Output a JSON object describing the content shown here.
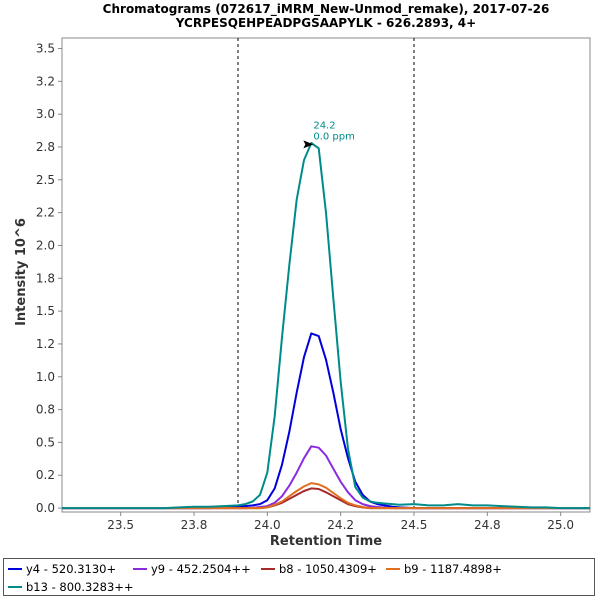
{
  "chart_data": {
    "type": "line",
    "title": "Chromatograms (072617_iMRM_New-Unmod_remake), 2017-07-26",
    "subtitle": "YCRPESQEHPEADPGSAAPYLK - 626.2893, 4+",
    "xlabel": "Retention Time",
    "ylabel": "Intensity 10^6",
    "xlim": [
      23.3,
      25.1
    ],
    "ylim": [
      -0.03,
      3.58
    ],
    "x_ticks": [
      "23.5",
      "23.8",
      "24.0",
      "24.2",
      "24.5",
      "24.8",
      "25.0"
    ],
    "x_tick_values": [
      23.5,
      23.75,
      24.0,
      24.25,
      24.5,
      24.75,
      25.0
    ],
    "y_ticks": [
      "0.0",
      "0.2",
      "0.5",
      "0.8",
      "1.0",
      "1.2",
      "1.5",
      "1.8",
      "2.0",
      "2.2",
      "2.5",
      "2.8",
      "3.0",
      "3.2",
      "3.5"
    ],
    "y_tick_values": [
      0,
      0.25,
      0.5,
      0.75,
      1.0,
      1.25,
      1.5,
      1.75,
      2.0,
      2.25,
      2.5,
      2.75,
      3.0,
      3.25,
      3.5
    ],
    "integration_bounds": [
      23.9,
      24.5
    ],
    "annotation": {
      "rt_label": "24.2",
      "ppm_label": "0.0 ppm",
      "x": 24.15,
      "y": 2.77,
      "color": "#008b8b"
    },
    "grid": false,
    "legend_position": "bottom",
    "x": [
      23.3,
      23.35,
      23.4,
      23.45,
      23.5,
      23.55,
      23.6,
      23.65,
      23.7,
      23.75,
      23.8,
      23.85,
      23.9,
      23.925,
      23.95,
      23.975,
      24.0,
      24.025,
      24.05,
      24.075,
      24.1,
      24.125,
      24.15,
      24.175,
      24.2,
      24.225,
      24.25,
      24.275,
      24.3,
      24.325,
      24.35,
      24.375,
      24.4,
      24.425,
      24.45,
      24.5,
      24.55,
      24.6,
      24.65,
      24.7,
      24.75,
      24.8,
      24.85,
      24.9,
      24.95,
      25.0,
      25.05,
      25.1
    ],
    "series": [
      {
        "name": "y4 - 520.3130+",
        "color": "#0000dd",
        "values": [
          0,
          0,
          0,
          0,
          0,
          0,
          0,
          0,
          0,
          0,
          0,
          0.005,
          0.01,
          0.015,
          0.02,
          0.03,
          0.06,
          0.15,
          0.33,
          0.58,
          0.88,
          1.15,
          1.33,
          1.31,
          1.13,
          0.88,
          0.6,
          0.38,
          0.2,
          0.1,
          0.05,
          0.03,
          0.02,
          0.01,
          0.005,
          0,
          0,
          0,
          0,
          0,
          0,
          0,
          0,
          0,
          0,
          0,
          0,
          0
        ]
      },
      {
        "name": "y9 - 452.2504++",
        "color": "#8a2be2",
        "values": [
          0,
          0,
          0,
          0,
          0,
          0,
          0,
          0,
          0,
          0,
          0,
          0,
          0,
          0,
          0.003,
          0.008,
          0.015,
          0.04,
          0.09,
          0.17,
          0.27,
          0.38,
          0.47,
          0.46,
          0.4,
          0.3,
          0.2,
          0.12,
          0.06,
          0.03,
          0.015,
          0.008,
          0.004,
          0,
          0,
          0,
          0,
          0,
          0,
          0,
          0,
          0,
          0,
          0,
          0,
          0,
          0,
          0
        ]
      },
      {
        "name": "b8 - 1050.4309+",
        "color": "#a52a2a",
        "values": [
          0,
          0,
          0,
          0,
          0,
          0,
          0,
          0,
          0,
          0,
          0,
          0,
          0,
          0,
          0,
          0,
          0.005,
          0.02,
          0.04,
          0.07,
          0.1,
          0.13,
          0.15,
          0.145,
          0.12,
          0.09,
          0.06,
          0.03,
          0.015,
          0.005,
          0,
          0,
          0,
          0,
          0,
          0,
          0,
          0,
          0,
          0,
          0,
          0,
          0,
          0,
          0,
          0,
          0,
          0
        ]
      },
      {
        "name": "b9 - 1187.4898+",
        "color": "#e07020",
        "values": [
          0,
          0,
          0,
          0,
          0,
          0,
          0,
          0,
          0,
          0,
          0,
          0,
          0,
          0,
          0,
          0,
          0.006,
          0.025,
          0.05,
          0.09,
          0.13,
          0.165,
          0.19,
          0.18,
          0.155,
          0.115,
          0.075,
          0.04,
          0.02,
          0.008,
          0,
          0,
          0,
          0,
          0,
          0,
          0,
          0,
          0,
          0,
          0,
          0,
          0,
          0,
          0,
          0,
          0,
          0
        ]
      },
      {
        "name": "b13 - 800.3283++",
        "color": "#008b8b",
        "values": [
          0,
          0,
          0,
          0,
          0,
          0,
          0,
          0,
          0.005,
          0.01,
          0.01,
          0.015,
          0.02,
          0.03,
          0.05,
          0.1,
          0.27,
          0.7,
          1.3,
          1.85,
          2.35,
          2.65,
          2.78,
          2.74,
          2.25,
          1.6,
          0.96,
          0.45,
          0.16,
          0.08,
          0.05,
          0.04,
          0.035,
          0.03,
          0.025,
          0.03,
          0.02,
          0.02,
          0.03,
          0.02,
          0.02,
          0.015,
          0.01,
          0.005,
          0.005,
          0,
          0,
          0
        ]
      }
    ]
  }
}
